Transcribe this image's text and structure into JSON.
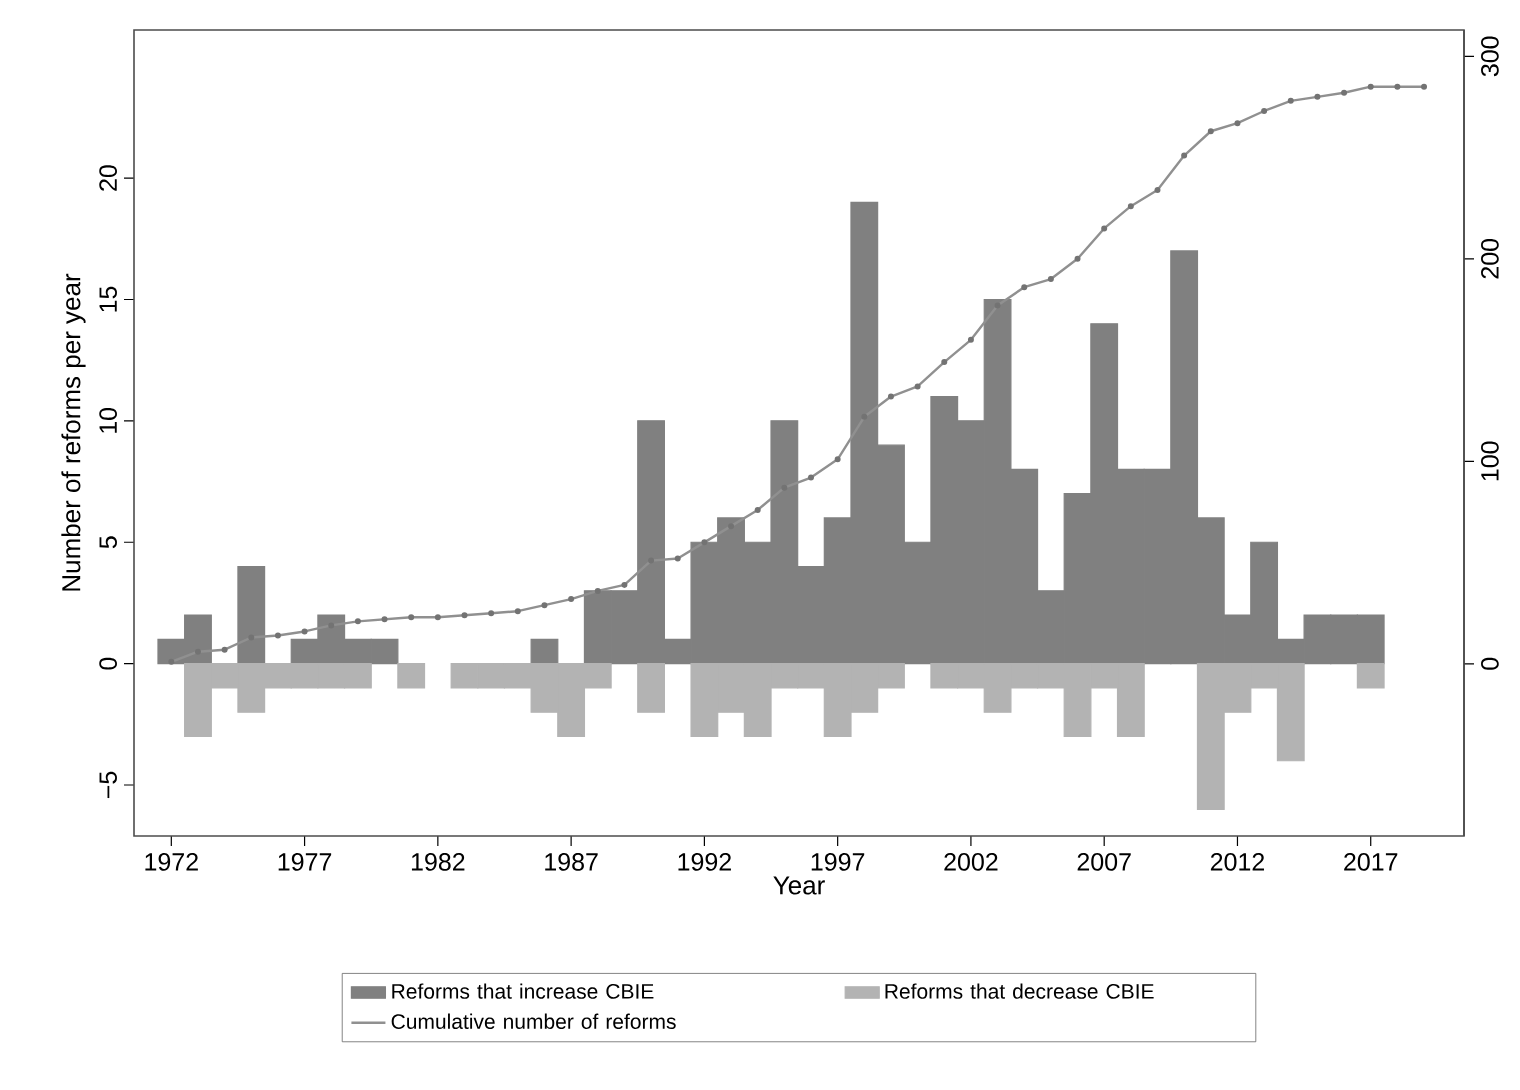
{
  "chart_data": {
    "type": "bar",
    "xlabel": "Year",
    "ylabel": "Number of reforms per year",
    "x": [
      1972,
      1973,
      1974,
      1975,
      1976,
      1977,
      1978,
      1979,
      1980,
      1981,
      1982,
      1983,
      1984,
      1985,
      1986,
      1987,
      1988,
      1989,
      1990,
      1991,
      1992,
      1993,
      1994,
      1995,
      1996,
      1997,
      1998,
      1999,
      2000,
      2001,
      2002,
      2003,
      2004,
      2005,
      2006,
      2007,
      2008,
      2009,
      2010,
      2011,
      2012,
      2013,
      2014,
      2015,
      2016,
      2017,
      2018,
      2019
    ],
    "series": [
      {
        "name": "Reforms that increase CBIE",
        "color": "#808080",
        "values": [
          1,
          2,
          null,
          4,
          null,
          1,
          2,
          1,
          1,
          null,
          null,
          null,
          null,
          null,
          1,
          null,
          3,
          3,
          10,
          1,
          5,
          6,
          5,
          10,
          4,
          6,
          19,
          9,
          5,
          11,
          10,
          15,
          8,
          3,
          7,
          14,
          8,
          8,
          17,
          6,
          2,
          5,
          1,
          2,
          2,
          2,
          null,
          null
        ]
      },
      {
        "name": "Reforms that decrease CBIE",
        "color": "#b3b3b3",
        "values": [
          null,
          -3,
          -1,
          -2,
          -1,
          -1,
          -1,
          -1,
          null,
          -1,
          null,
          -1,
          -1,
          -1,
          -2,
          -3,
          -1,
          null,
          -2,
          null,
          -3,
          -2,
          -3,
          -1,
          -1,
          -3,
          -2,
          -1,
          null,
          -1,
          -1,
          -2,
          -1,
          -1,
          -3,
          -1,
          -3,
          null,
          null,
          -6,
          -2,
          -1,
          -4,
          null,
          null,
          -1,
          null,
          null
        ]
      },
      {
        "name": "Cumulative number of reforms",
        "type": "line",
        "axis": "y2",
        "color": "#909090",
        "marker": "circle",
        "values": [
          1,
          6,
          7,
          13,
          14,
          16,
          19,
          21,
          22,
          23,
          23,
          24,
          25,
          26,
          29,
          32,
          36,
          39,
          51,
          52,
          60,
          68,
          76,
          87,
          92,
          101,
          122,
          132,
          137,
          149,
          160,
          177,
          186,
          190,
          200,
          215,
          226,
          234,
          251,
          263,
          267,
          273,
          278,
          280,
          282,
          285,
          285,
          285
        ]
      }
    ],
    "xlim": [
      1970.6,
      2020.5
    ],
    "xticks": [
      1972,
      1977,
      1982,
      1987,
      1992,
      1997,
      2002,
      2007,
      2012,
      2017
    ],
    "ylim": [
      -7.1,
      26.1
    ],
    "yticks": [
      {
        "value": -5,
        "label": "−5"
      },
      0,
      5,
      10,
      15,
      20
    ],
    "y2lim": [
      -85,
      313
    ],
    "y2ticks": [
      0,
      100,
      200,
      300
    ],
    "stacked": true,
    "legend": "bottom"
  }
}
